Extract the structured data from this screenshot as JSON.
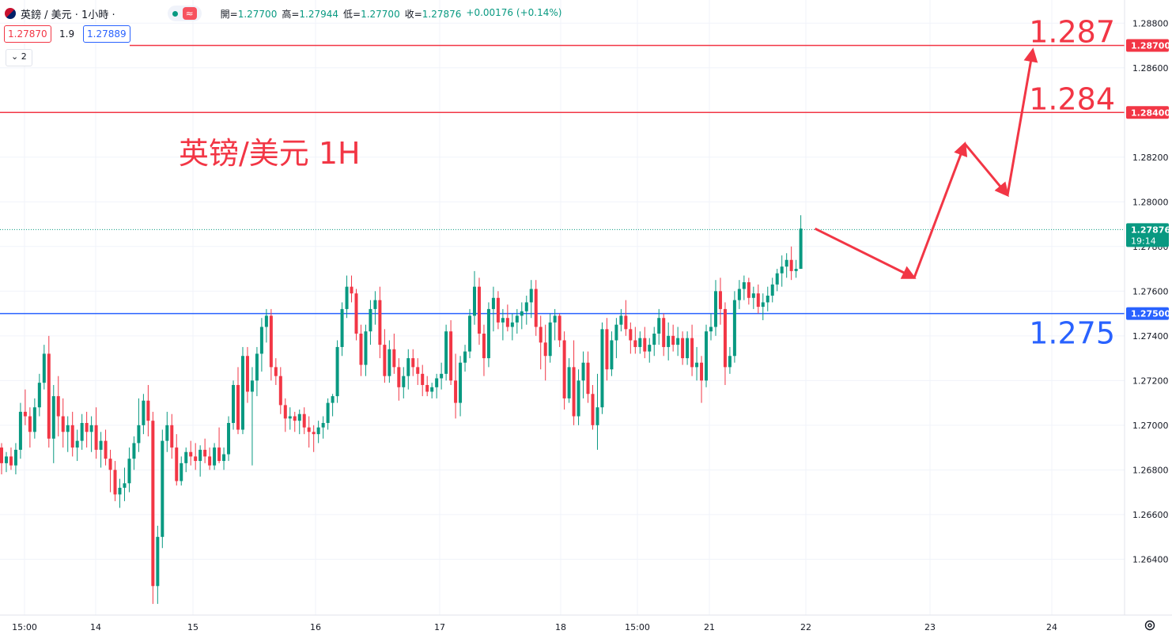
{
  "header": {
    "symbol": "英鎊 / 美元 · 1小時 ·",
    "wave_icon": "≈",
    "ohlc": [
      {
        "label": "開=",
        "value": "1.27700"
      },
      {
        "label": "高=",
        "value": "1.27944"
      },
      {
        "label": "低=",
        "value": "1.27700"
      },
      {
        "label": "收=",
        "value": "1.27876"
      },
      {
        "label": "",
        "value": "+0.00176 (+0.14%)"
      }
    ],
    "sell_price": "1.27870",
    "spread": "1.9",
    "buy_price": "1.27889",
    "indicator_toggle": "2"
  },
  "colors": {
    "up": "#089981",
    "down": "#f23645",
    "resistance": "#f23645",
    "support": "#2962ff",
    "annotation": "#f23645",
    "axis_text": "#131722",
    "grid": "#f0f3fa"
  },
  "chart_data": {
    "type": "candlestick",
    "title": "英镑/美元 1H",
    "ylim": [
      1.2615,
      1.289
    ],
    "y_ticks": [
      "1.28800",
      "1.28600",
      "1.28400",
      "1.28200",
      "1.28000",
      "1.27800",
      "1.27600",
      "1.27400",
      "1.27200",
      "1.27000",
      "1.26800",
      "1.26600",
      "1.26400"
    ],
    "x_ticks": [
      "15:00",
      "14",
      "15",
      "16",
      "17",
      "18",
      "15:00",
      "21",
      "22",
      "23",
      "24"
    ],
    "horizontal_lines": [
      {
        "price": 1.287,
        "label": "1.287",
        "tag": "1.28700",
        "color": "#f23645"
      },
      {
        "price": 1.284,
        "label": "1.284",
        "tag": "1.28400",
        "color": "#f23645"
      },
      {
        "price": 1.275,
        "label": "1.275",
        "tag": "1.27500",
        "color": "#2962ff"
      }
    ],
    "last_price": {
      "value": "1.27876",
      "countdown": "19:14"
    },
    "projection_path": [
      1.2788,
      1.2766,
      1.2826,
      1.2803,
      1.2868
    ],
    "candles": [
      [
        1.269,
        1.2692,
        1.2678,
        1.2683
      ],
      [
        1.2683,
        1.2688,
        1.2679,
        1.2686
      ],
      [
        1.2686,
        1.269,
        1.268,
        1.2682
      ],
      [
        1.2682,
        1.2692,
        1.2678,
        1.2689
      ],
      [
        1.2689,
        1.271,
        1.2685,
        1.2706
      ],
      [
        1.2706,
        1.2716,
        1.27,
        1.2704
      ],
      [
        1.2704,
        1.2708,
        1.269,
        1.2697
      ],
      [
        1.2697,
        1.2712,
        1.2694,
        1.2708
      ],
      [
        1.2708,
        1.2723,
        1.2704,
        1.2719
      ],
      [
        1.2719,
        1.2736,
        1.2716,
        1.2732
      ],
      [
        1.2732,
        1.274,
        1.269,
        1.2694
      ],
      [
        1.2694,
        1.2718,
        1.2683,
        1.2713
      ],
      [
        1.2713,
        1.2722,
        1.2695,
        1.2704
      ],
      [
        1.2704,
        1.2712,
        1.269,
        1.2697
      ],
      [
        1.2697,
        1.2704,
        1.2688,
        1.27
      ],
      [
        1.27,
        1.2706,
        1.2686,
        1.269
      ],
      [
        1.269,
        1.2698,
        1.2684,
        1.2693
      ],
      [
        1.2693,
        1.2705,
        1.2689,
        1.2701
      ],
      [
        1.2701,
        1.2706,
        1.269,
        1.2697
      ],
      [
        1.2697,
        1.2704,
        1.2688,
        1.27
      ],
      [
        1.27,
        1.2708,
        1.2685,
        1.2689
      ],
      [
        1.2689,
        1.2697,
        1.2681,
        1.2693
      ],
      [
        1.2693,
        1.2698,
        1.2682,
        1.2685
      ],
      [
        1.2685,
        1.2689,
        1.267,
        1.268
      ],
      [
        1.268,
        1.2684,
        1.2666,
        1.2669
      ],
      [
        1.2669,
        1.2676,
        1.2663,
        1.2672
      ],
      [
        1.2672,
        1.2681,
        1.2666,
        1.2674
      ],
      [
        1.2674,
        1.269,
        1.267,
        1.2685
      ],
      [
        1.2685,
        1.2695,
        1.268,
        1.2692
      ],
      [
        1.2692,
        1.2712,
        1.2688,
        1.27
      ],
      [
        1.27,
        1.2714,
        1.2696,
        1.2711
      ],
      [
        1.2711,
        1.2718,
        1.2695,
        1.2702
      ],
      [
        1.2702,
        1.2706,
        1.262,
        1.2628
      ],
      [
        1.2628,
        1.2655,
        1.262,
        1.265
      ],
      [
        1.265,
        1.2698,
        1.2645,
        1.2693
      ],
      [
        1.2693,
        1.2706,
        1.2688,
        1.27
      ],
      [
        1.27,
        1.2705,
        1.2685,
        1.269
      ],
      [
        1.269,
        1.2696,
        1.2673,
        1.2675
      ],
      [
        1.2675,
        1.2686,
        1.2673,
        1.2683
      ],
      [
        1.2683,
        1.269,
        1.2679,
        1.2688
      ],
      [
        1.2688,
        1.2693,
        1.2682,
        1.2686
      ],
      [
        1.2686,
        1.2692,
        1.268,
        1.2684
      ],
      [
        1.2684,
        1.2691,
        1.2677,
        1.2689
      ],
      [
        1.2689,
        1.2694,
        1.2683,
        1.2686
      ],
      [
        1.2686,
        1.269,
        1.268,
        1.2682
      ],
      [
        1.2682,
        1.2692,
        1.268,
        1.269
      ],
      [
        1.269,
        1.2699,
        1.2683,
        1.2684
      ],
      [
        1.2684,
        1.269,
        1.268,
        1.2687
      ],
      [
        1.2687,
        1.2704,
        1.2684,
        1.2701
      ],
      [
        1.2701,
        1.272,
        1.2698,
        1.2718
      ],
      [
        1.2718,
        1.2726,
        1.2696,
        1.2698
      ],
      [
        1.2698,
        1.2735,
        1.2696,
        1.2731
      ],
      [
        1.2731,
        1.2735,
        1.271,
        1.2715
      ],
      [
        1.2715,
        1.2726,
        1.2682,
        1.272
      ],
      [
        1.272,
        1.2735,
        1.2713,
        1.2732
      ],
      [
        1.2732,
        1.2748,
        1.2724,
        1.2744
      ],
      [
        1.2744,
        1.2752,
        1.2737,
        1.2749
      ],
      [
        1.2749,
        1.2752,
        1.272,
        1.2726
      ],
      [
        1.2726,
        1.273,
        1.2718,
        1.2722
      ],
      [
        1.2722,
        1.2726,
        1.2705,
        1.2709
      ],
      [
        1.2709,
        1.2712,
        1.2697,
        1.2703
      ],
      [
        1.2703,
        1.2708,
        1.2698,
        1.2704
      ],
      [
        1.2704,
        1.2706,
        1.2697,
        1.2702
      ],
      [
        1.2702,
        1.2707,
        1.2696,
        1.2705
      ],
      [
        1.2705,
        1.2708,
        1.2696,
        1.2699
      ],
      [
        1.2699,
        1.2704,
        1.269,
        1.2697
      ],
      [
        1.2697,
        1.27,
        1.2688,
        1.2696
      ],
      [
        1.2696,
        1.2702,
        1.2692,
        1.2699
      ],
      [
        1.2699,
        1.2704,
        1.2694,
        1.2701
      ],
      [
        1.2701,
        1.2712,
        1.2698,
        1.271
      ],
      [
        1.271,
        1.2714,
        1.2704,
        1.2713
      ],
      [
        1.2713,
        1.2738,
        1.271,
        1.2735
      ],
      [
        1.2735,
        1.2755,
        1.2731,
        1.2752
      ],
      [
        1.2752,
        1.2767,
        1.2748,
        1.2762
      ],
      [
        1.2762,
        1.2767,
        1.2755,
        1.2759
      ],
      [
        1.2759,
        1.2761,
        1.2738,
        1.2741
      ],
      [
        1.2741,
        1.2745,
        1.2722,
        1.2727
      ],
      [
        1.2727,
        1.2745,
        1.2722,
        1.2742
      ],
      [
        1.2742,
        1.2756,
        1.2736,
        1.2752
      ],
      [
        1.2752,
        1.276,
        1.2745,
        1.2756
      ],
      [
        1.2756,
        1.2762,
        1.273,
        1.2736
      ],
      [
        1.2736,
        1.2743,
        1.2719,
        1.2722
      ],
      [
        1.2722,
        1.2738,
        1.2719,
        1.2734
      ],
      [
        1.2734,
        1.2741,
        1.2723,
        1.2726
      ],
      [
        1.2726,
        1.273,
        1.2711,
        1.2717
      ],
      [
        1.2717,
        1.2726,
        1.2712,
        1.2722
      ],
      [
        1.2722,
        1.2734,
        1.2716,
        1.273
      ],
      [
        1.273,
        1.2734,
        1.2722,
        1.2726
      ],
      [
        1.2726,
        1.273,
        1.2718,
        1.2723
      ],
      [
        1.2723,
        1.2727,
        1.2713,
        1.2718
      ],
      [
        1.2718,
        1.2722,
        1.2713,
        1.2715
      ],
      [
        1.2715,
        1.2719,
        1.2712,
        1.2717
      ],
      [
        1.2717,
        1.2723,
        1.2712,
        1.2721
      ],
      [
        1.2721,
        1.2728,
        1.2716,
        1.2723
      ],
      [
        1.2723,
        1.2745,
        1.272,
        1.2742
      ],
      [
        1.2742,
        1.2747,
        1.2718,
        1.272
      ],
      [
        1.272,
        1.2732,
        1.2703,
        1.271
      ],
      [
        1.271,
        1.2731,
        1.2704,
        1.2728
      ],
      [
        1.2728,
        1.2736,
        1.2724,
        1.2733
      ],
      [
        1.2733,
        1.2752,
        1.273,
        1.2749
      ],
      [
        1.2749,
        1.2769,
        1.2745,
        1.2762
      ],
      [
        1.2762,
        1.2766,
        1.2736,
        1.2741
      ],
      [
        1.2741,
        1.2745,
        1.2722,
        1.273
      ],
      [
        1.273,
        1.2755,
        1.2726,
        1.2752
      ],
      [
        1.2752,
        1.2762,
        1.2742,
        1.2757
      ],
      [
        1.2757,
        1.276,
        1.2743,
        1.2746
      ],
      [
        1.2746,
        1.2752,
        1.2738,
        1.2748
      ],
      [
        1.2748,
        1.2754,
        1.2742,
        1.2744
      ],
      [
        1.2744,
        1.275,
        1.2738,
        1.2746
      ],
      [
        1.2746,
        1.2752,
        1.2741,
        1.2749
      ],
      [
        1.2749,
        1.2755,
        1.2743,
        1.2751
      ],
      [
        1.2751,
        1.2758,
        1.2745,
        1.2755
      ],
      [
        1.2755,
        1.2765,
        1.2748,
        1.2761
      ],
      [
        1.2761,
        1.2765,
        1.274,
        1.2744
      ],
      [
        1.2744,
        1.2749,
        1.2725,
        1.2737
      ],
      [
        1.2737,
        1.2745,
        1.272,
        1.2731
      ],
      [
        1.2731,
        1.275,
        1.2728,
        1.2746
      ],
      [
        1.2746,
        1.2752,
        1.2738,
        1.2749
      ],
      [
        1.2749,
        1.275,
        1.2735,
        1.2738
      ],
      [
        1.2738,
        1.2742,
        1.2707,
        1.2712
      ],
      [
        1.2712,
        1.273,
        1.271,
        1.2726
      ],
      [
        1.2726,
        1.2738,
        1.27,
        1.2704
      ],
      [
        1.2704,
        1.2725,
        1.27,
        1.272
      ],
      [
        1.272,
        1.2733,
        1.2712,
        1.2728
      ],
      [
        1.2728,
        1.2733,
        1.271,
        1.2714
      ],
      [
        1.2714,
        1.2718,
        1.2698,
        1.27
      ],
      [
        1.27,
        1.2723,
        1.2689,
        1.2708
      ],
      [
        1.2708,
        1.2746,
        1.2705,
        1.2743
      ],
      [
        1.2743,
        1.2748,
        1.272,
        1.2725
      ],
      [
        1.2725,
        1.2742,
        1.2722,
        1.2738
      ],
      [
        1.2738,
        1.2748,
        1.273,
        1.2745
      ],
      [
        1.2745,
        1.2752,
        1.2742,
        1.2749
      ],
      [
        1.2749,
        1.2756,
        1.274,
        1.2743
      ],
      [
        1.2743,
        1.2746,
        1.2732,
        1.2738
      ],
      [
        1.2738,
        1.2744,
        1.2732,
        1.2735
      ],
      [
        1.2735,
        1.2742,
        1.2732,
        1.2739
      ],
      [
        1.2739,
        1.2744,
        1.273,
        1.2733
      ],
      [
        1.2733,
        1.2739,
        1.2728,
        1.2736
      ],
      [
        1.2736,
        1.2744,
        1.2731,
        1.2741
      ],
      [
        1.2741,
        1.2752,
        1.2736,
        1.2748
      ],
      [
        1.2748,
        1.275,
        1.2731,
        1.2735
      ],
      [
        1.2735,
        1.2746,
        1.2729,
        1.274
      ],
      [
        1.274,
        1.2745,
        1.2733,
        1.2736
      ],
      [
        1.2736,
        1.2744,
        1.2731,
        1.2739
      ],
      [
        1.2739,
        1.2742,
        1.2727,
        1.273
      ],
      [
        1.273,
        1.2742,
        1.2727,
        1.2739
      ],
      [
        1.2739,
        1.2745,
        1.2722,
        1.2726
      ],
      [
        1.2726,
        1.2735,
        1.272,
        1.2728
      ],
      [
        1.2728,
        1.2731,
        1.271,
        1.272
      ],
      [
        1.272,
        1.2745,
        1.2717,
        1.2742
      ],
      [
        1.2742,
        1.275,
        1.2738,
        1.2744
      ],
      [
        1.2744,
        1.2765,
        1.274,
        1.276
      ],
      [
        1.276,
        1.2766,
        1.2745,
        1.2752
      ],
      [
        1.2752,
        1.2755,
        1.2718,
        1.2726
      ],
      [
        1.2726,
        1.2735,
        1.2723,
        1.2731
      ],
      [
        1.2731,
        1.276,
        1.2728,
        1.2756
      ],
      [
        1.2756,
        1.2765,
        1.2752,
        1.2761
      ],
      [
        1.2761,
        1.2767,
        1.2756,
        1.2764
      ],
      [
        1.2764,
        1.2766,
        1.2754,
        1.2757
      ],
      [
        1.2757,
        1.2762,
        1.2752,
        1.2759
      ],
      [
        1.2759,
        1.2763,
        1.275,
        1.2753
      ],
      [
        1.2753,
        1.2759,
        1.2747,
        1.2755
      ],
      [
        1.2755,
        1.2762,
        1.2751,
        1.2758
      ],
      [
        1.2758,
        1.2766,
        1.2755,
        1.2763
      ],
      [
        1.2763,
        1.277,
        1.276,
        1.2768
      ],
      [
        1.2768,
        1.2776,
        1.2762,
        1.2771
      ],
      [
        1.2771,
        1.2777,
        1.2766,
        1.2774
      ],
      [
        1.2774,
        1.278,
        1.2765,
        1.2769
      ],
      [
        1.2769,
        1.2774,
        1.2766,
        1.277
      ],
      [
        1.277,
        1.2794,
        1.277,
        1.2788
      ]
    ]
  }
}
